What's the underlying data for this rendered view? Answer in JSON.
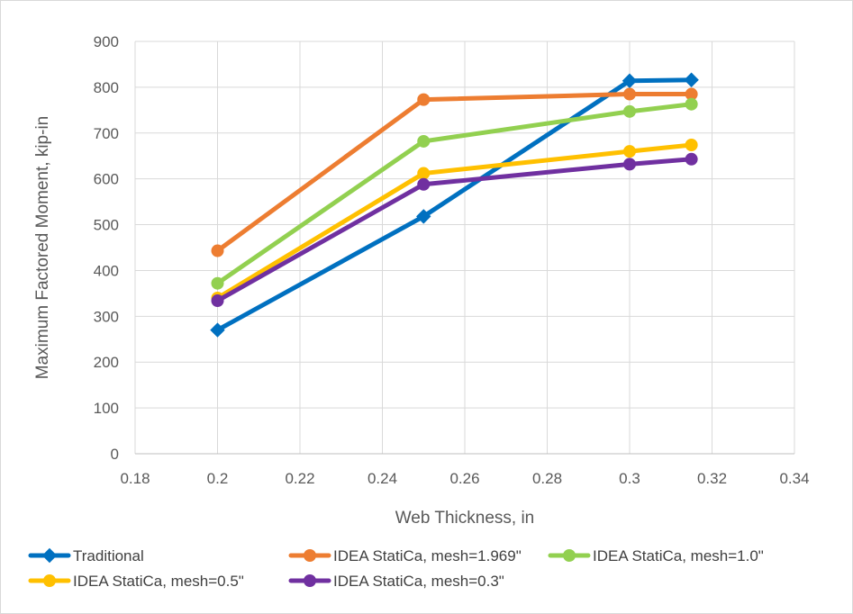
{
  "chart_data": {
    "type": "line",
    "title": "",
    "xlabel": "Web Thickness, in",
    "ylabel": "Maximum Factored Moment, kip-in",
    "xlim": [
      0.18,
      0.34
    ],
    "ylim": [
      0,
      900
    ],
    "xticks": [
      "0.18",
      "0.2",
      "0.22",
      "0.24",
      "0.26",
      "0.28",
      "0.3",
      "0.32",
      "0.34"
    ],
    "yticks": [
      "0",
      "100",
      "200",
      "300",
      "400",
      "500",
      "600",
      "700",
      "800",
      "900"
    ],
    "grid": true,
    "legend_position": "bottom",
    "series": [
      {
        "name": "Traditional",
        "color": "#0070c0",
        "marker": "diamond",
        "x": [
          0.2,
          0.25,
          0.3,
          0.315
        ],
        "y": [
          270,
          518,
          814,
          816
        ]
      },
      {
        "name": "IDEA StatiCa, mesh=1.969\"",
        "color": "#ed7d31",
        "marker": "circle",
        "x": [
          0.2,
          0.25,
          0.3,
          0.315
        ],
        "y": [
          443,
          773,
          785,
          785
        ]
      },
      {
        "name": "IDEA StatiCa, mesh=1.0\"",
        "color": "#92d050",
        "marker": "circle",
        "x": [
          0.2,
          0.25,
          0.3,
          0.315
        ],
        "y": [
          372,
          682,
          747,
          763
        ]
      },
      {
        "name": "IDEA StatiCa, mesh=0.5\"",
        "color": "#ffc000",
        "marker": "circle",
        "x": [
          0.2,
          0.25,
          0.3,
          0.315
        ],
        "y": [
          340,
          612,
          660,
          674
        ]
      },
      {
        "name": "IDEA StatiCa, mesh=0.3\"",
        "color": "#7030a0",
        "marker": "circle",
        "x": [
          0.2,
          0.25,
          0.3,
          0.315
        ],
        "y": [
          334,
          588,
          632,
          643
        ]
      }
    ]
  }
}
